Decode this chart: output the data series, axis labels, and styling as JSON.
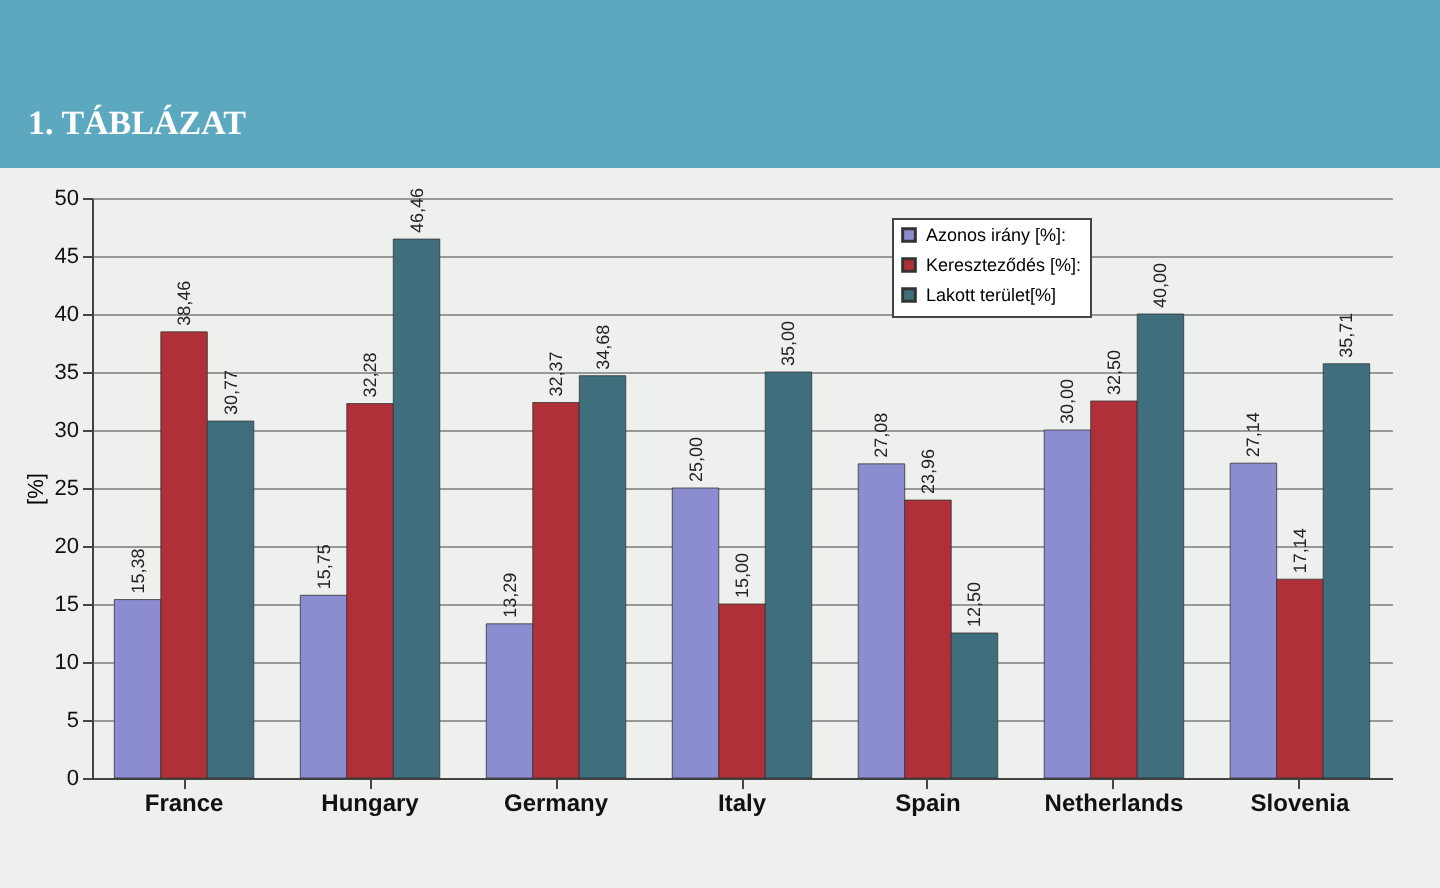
{
  "chart_data": {
    "type": "bar",
    "title": "1. TÁBLÁZAT",
    "ylabel": "[%]",
    "categories": [
      "France",
      "Hungary",
      "Germany",
      "Italy",
      "Spain",
      "Netherlands",
      "Slovenia"
    ],
    "series": [
      {
        "name": "Azonos irány [%]:",
        "color": "#8c8cd0",
        "values": [
          15.38,
          15.75,
          13.29,
          25.0,
          27.08,
          30.0,
          27.14
        ],
        "value_labels": [
          "15,38",
          "15,75",
          "13,29",
          "25,00",
          "27,08",
          "30,00",
          "27,14"
        ]
      },
      {
        "name": "Kereszteződés [%]:",
        "color": "#b0303a",
        "values": [
          38.46,
          32.28,
          32.37,
          15.0,
          23.96,
          32.5,
          17.14
        ],
        "value_labels": [
          "38,46",
          "32,28",
          "32,37",
          "15,00",
          "23,96",
          "32,50",
          "17,14"
        ]
      },
      {
        "name": "Lakott terület[%]",
        "color": "#3f6f7c",
        "values": [
          30.77,
          46.46,
          34.68,
          35.0,
          12.5,
          40.0,
          35.71
        ],
        "value_labels": [
          "30,77",
          "46,46",
          "34,68",
          "35,00",
          "12,50",
          "40,00",
          "35,71"
        ]
      }
    ],
    "ylim": [
      0,
      50
    ],
    "yticks": [
      0,
      5,
      10,
      15,
      20,
      25,
      30,
      35,
      40,
      45,
      50
    ],
    "grid": "y",
    "legend": "top right"
  }
}
